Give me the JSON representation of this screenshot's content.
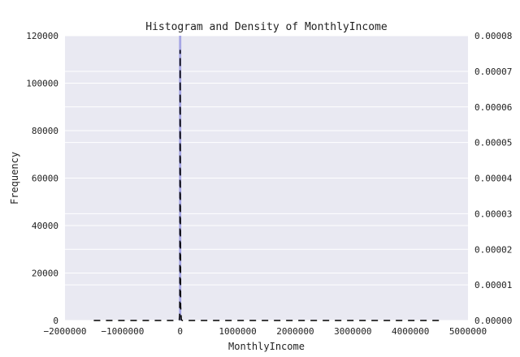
{
  "chart_data": {
    "type": "bar",
    "title": "Histogram and Density of MonthlyIncome",
    "xlabel": "MonthlyIncome",
    "ylabel": "Frequency",
    "y2label": "",
    "xlim": [
      -2000000,
      5000000
    ],
    "ylim": [
      0,
      120000
    ],
    "y2lim": [
      0,
      8e-05
    ],
    "xticks": [
      -2000000,
      -1000000,
      0,
      1000000,
      2000000,
      3000000,
      4000000,
      5000000
    ],
    "xtick_labels": [
      "−2000000",
      "−1000000",
      "0",
      "1000000",
      "2000000",
      "3000000",
      "4000000",
      "5000000"
    ],
    "yticks": [
      0,
      20000,
      40000,
      60000,
      80000,
      100000,
      120000
    ],
    "ytick_labels": [
      "0",
      "20000",
      "40000",
      "60000",
      "80000",
      "100000",
      "120000"
    ],
    "y2ticks": [
      0,
      1e-05,
      2e-05,
      3e-05,
      4e-05,
      5e-05,
      6e-05,
      7e-05,
      8e-05
    ],
    "y2tick_labels": [
      "0.00000",
      "0.00001",
      "0.00002",
      "0.00003",
      "0.00004",
      "0.00005",
      "0.00006",
      "0.00007",
      "0.00008"
    ],
    "grid": true,
    "background": "#e9e9f2",
    "series": [
      {
        "kind": "histogram",
        "color": "#8f8fe0",
        "bins": [
          {
            "x0": -20000,
            "x1": 20000,
            "count": 120000
          }
        ]
      },
      {
        "kind": "density",
        "axis": "right",
        "color": "#000000",
        "line": "dashed",
        "points": [
          [
            -1500000,
            0
          ],
          [
            -30000,
            0
          ],
          [
            -15000,
            2e-07
          ],
          [
            -8000,
            1.5e-06
          ],
          [
            -4000,
            8e-06
          ],
          [
            0,
            7.6e-05
          ],
          [
            3000,
            3e-05
          ],
          [
            8000,
            4e-06
          ],
          [
            20000,
            2e-07
          ],
          [
            40000,
            0
          ],
          [
            4500000,
            0
          ]
        ]
      }
    ]
  }
}
